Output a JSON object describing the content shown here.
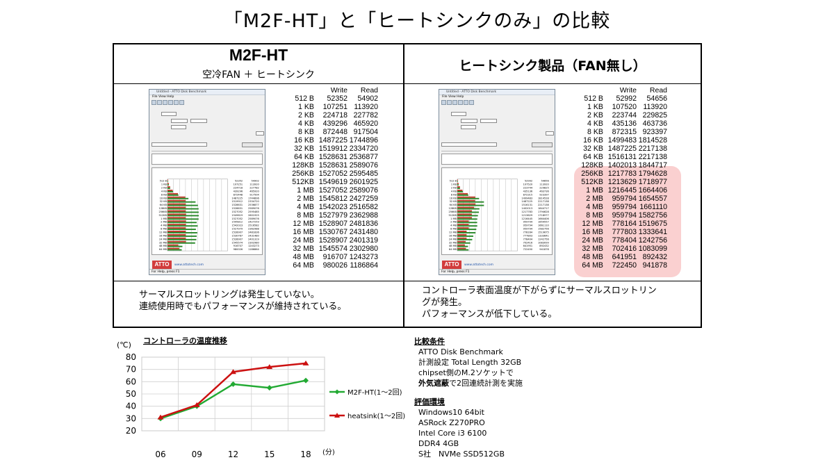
{
  "title": "「M2F-HT」と「ヒートシンクのみ」の比較",
  "left": {
    "title": "M2F-HT",
    "subtitle": "空冷FAN ＋ ヒートシンク",
    "note": [
      "サーマルスロットリングは発生していない。",
      "連続使用時でもパフォーマンスが維持されている。"
    ],
    "bench": {
      "header_write": "Write",
      "header_read": "Read",
      "rows": [
        [
          "512 B",
          "52352",
          "54902"
        ],
        [
          "1 KB",
          "107251",
          "113920"
        ],
        [
          "2 KB",
          "224718",
          "227782"
        ],
        [
          "4 KB",
          "439296",
          "465920"
        ],
        [
          "8 KB",
          "872448",
          "917504"
        ],
        [
          "16 KB",
          "1487225",
          "1744896"
        ],
        [
          "32 KB",
          "1519912",
          "2334720"
        ],
        [
          "64 KB",
          "1528631",
          "2536877"
        ],
        [
          "128KB",
          "1528631",
          "2589076"
        ],
        [
          "256KB",
          "1527052",
          "2595485"
        ],
        [
          "512KB",
          "1549619",
          "2601925"
        ],
        [
          "1 MB",
          "1527052",
          "2589076"
        ],
        [
          "2 MB",
          "1545812",
          "2427259"
        ],
        [
          "4 MB",
          "1542023",
          "2516582"
        ],
        [
          "8 MB",
          "1527979",
          "2362988"
        ],
        [
          "12 MB",
          "1528907",
          "2481836"
        ],
        [
          "16 MB",
          "1530767",
          "2431480"
        ],
        [
          "24 MB",
          "1528907",
          "2401319"
        ],
        [
          "32 MB",
          "1545574",
          "2302980"
        ],
        [
          "48 MB",
          "916707",
          "1243273"
        ],
        [
          "64 MB",
          "980026",
          "1186864"
        ]
      ]
    }
  },
  "right": {
    "title": "ヒートシンク製品（FAN無し）",
    "note": [
      "コントローラ表面温度が下がらずにサーマルスロットリン",
      "グが発生。",
      "パフォーマンスが低下している。"
    ],
    "bench": {
      "header_write": "Write",
      "header_read": "Read",
      "rows": [
        [
          "512 B",
          "52992",
          "54656"
        ],
        [
          "1 KB",
          "107520",
          "113920"
        ],
        [
          "2 KB",
          "223744",
          "229825"
        ],
        [
          "4 KB",
          "435136",
          "463736"
        ],
        [
          "8 KB",
          "872315",
          "923397"
        ],
        [
          "16 KB",
          "1499483",
          "1814528"
        ],
        [
          "32 KB",
          "1487225",
          "2217138"
        ],
        [
          "64 KB",
          "1516131",
          "2217138"
        ],
        [
          "128KB",
          "1402013",
          "1844717"
        ],
        [
          "256KB",
          "1217783",
          "1794628"
        ],
        [
          "512KB",
          "1213629",
          "1718977"
        ],
        [
          "1 MB",
          "1216445",
          "1664406"
        ],
        [
          "2 MB",
          "959794",
          "1654557"
        ],
        [
          "4 MB",
          "959794",
          "1661110"
        ],
        [
          "8 MB",
          "959794",
          "1582756"
        ],
        [
          "12 MB",
          "778164",
          "1519675"
        ],
        [
          "16 MB",
          "777803",
          "1333641"
        ],
        [
          "24 MB",
          "778404",
          "1242756"
        ],
        [
          "32 MB",
          "702416",
          "1083099"
        ],
        [
          "48 MB",
          "641951",
          "892432"
        ],
        [
          "64 MB",
          "722450",
          "941878"
        ]
      ]
    }
  },
  "screenshot": {
    "window_title": "Untitled - ATTO Disk Benchmark",
    "menu": "File  View  Help",
    "logo": "ATTO",
    "site": "www.attotech.com",
    "status": "For Help, press F1"
  },
  "chart_data": {
    "type": "line",
    "title": "コントロ－ラの温度推移",
    "ylabel": "(℃)",
    "xunit": "(分)",
    "categories": [
      "06",
      "09",
      "12",
      "15",
      "18"
    ],
    "ylim": [
      20,
      80
    ],
    "yticks": [
      20,
      30,
      40,
      50,
      60,
      70,
      80
    ],
    "series": [
      {
        "name": "M2F-HT(1〜2回)",
        "values": [
          30,
          40,
          58,
          55,
          61
        ],
        "color": "#22aa33"
      },
      {
        "name": "heatsink(1〜2回)",
        "values": [
          31,
          41,
          68,
          72,
          75
        ],
        "color": "#cc1111"
      }
    ]
  },
  "conditions": {
    "heading": "比較条件",
    "items": [
      "ATTO Disk Benchmark",
      "計測設定 Total Length 32GB",
      "chipset側のM.2ソケットで"
    ],
    "last_bold": "外気遮蔽",
    "last_rest": "で2回連続計測を実施"
  },
  "environment": {
    "heading": "評価環境",
    "items": [
      "Windows10 64bit",
      "ASRock Z270PRO",
      "Intel Core i3 6100",
      "DDR4 4GB",
      "S社　NVMe SSD512GB"
    ]
  }
}
